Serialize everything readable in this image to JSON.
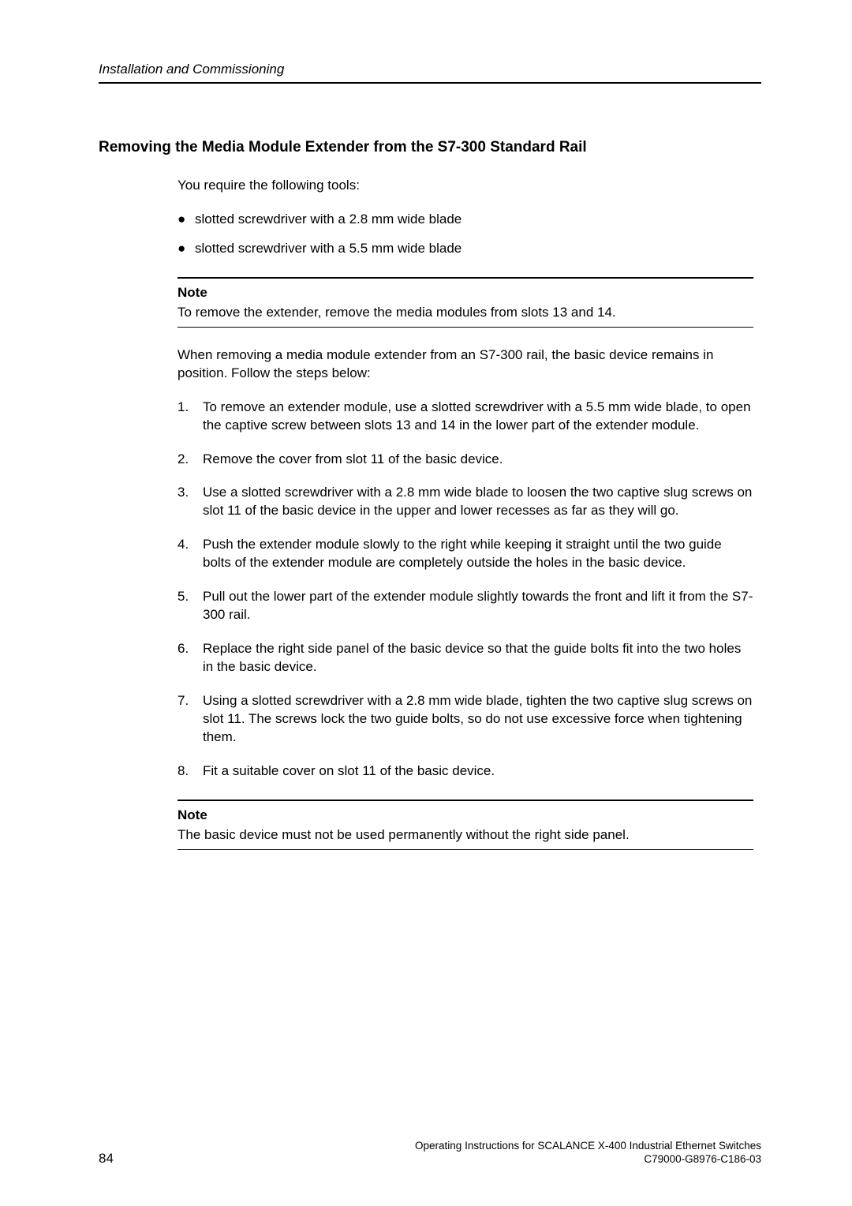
{
  "header": {
    "running": "Installation and Commissioning"
  },
  "section": {
    "heading": "Removing the Media Module Extender from the S7-300 Standard Rail"
  },
  "intro": {
    "tools_text": "You require the following tools:"
  },
  "bullets": [
    {
      "text": "slotted screwdriver with a 2.8 mm wide blade"
    },
    {
      "text": "slotted screwdriver with a 5.5 mm wide blade"
    }
  ],
  "note1": {
    "title": "Note",
    "body": "To remove the extender, remove the media modules from slots 13 and 14."
  },
  "lead": {
    "text": "When removing a media module extender from an S7-300 rail, the basic device remains in position. Follow the steps below:"
  },
  "steps": [
    {
      "n": "1.",
      "text": "To remove an extender module, use a slotted screwdriver with a 5.5 mm wide blade, to open the captive screw between slots 13 and 14 in the lower part of the extender module."
    },
    {
      "n": "2.",
      "text": "Remove the cover from slot 11 of the basic device."
    },
    {
      "n": "3.",
      "text": "Use a slotted screwdriver with a 2.8 mm wide blade to loosen the two captive slug screws on slot 11 of the basic device in the upper and lower recesses as far as they will go."
    },
    {
      "n": "4.",
      "text": "Push the extender module slowly to the right while keeping it straight until the two guide bolts of the extender module are completely outside the holes in the basic device."
    },
    {
      "n": "5.",
      "text": "Pull out the lower part of the extender module slightly towards the front and lift it from the S7-300 rail."
    },
    {
      "n": "6.",
      "text": "Replace the right side panel of the basic device so that the guide bolts fit into the two holes in the basic device."
    },
    {
      "n": "7.",
      "text": "Using a slotted screwdriver with a 2.8 mm wide blade, tighten the two captive slug screws on slot 11. The screws lock the two guide bolts, so do not use excessive force when tightening them."
    },
    {
      "n": "8.",
      "text": "Fit a suitable cover on slot 11 of the basic device."
    }
  ],
  "note2": {
    "title": "Note",
    "body": "The basic device must not be used permanently without the right side panel."
  },
  "footer": {
    "page": "84",
    "line1": "Operating Instructions for SCALANCE X-400 Industrial Ethernet Switches",
    "line2": "C79000-G8976-C186-03"
  }
}
